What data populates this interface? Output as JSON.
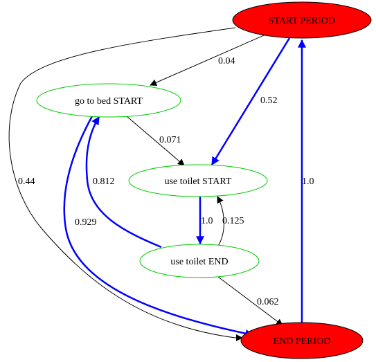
{
  "nodes": {
    "start_period": {
      "label": "START PERIOD",
      "fill": "#ff0000",
      "stroke": "#000000"
    },
    "end_period": {
      "label": "END PERIOD",
      "fill": "#ff0000",
      "stroke": "#000000"
    },
    "bed_start": {
      "label": "go to bed START",
      "fill": "#ffffff",
      "stroke": "#00cc00"
    },
    "toilet_start": {
      "label": "use toilet START",
      "fill": "#ffffff",
      "stroke": "#00cc00"
    },
    "toilet_end": {
      "label": "use toilet END",
      "fill": "#ffffff",
      "stroke": "#00cc00"
    }
  },
  "edges": {
    "start_to_bed": {
      "label": "0.04",
      "color": "#000000"
    },
    "start_to_toilet_start": {
      "label": "0.52",
      "color": "#0000ff"
    },
    "start_to_end": {
      "label": "0.44",
      "color": "#000000"
    },
    "bed_to_toilet_start": {
      "label": "0.071",
      "color": "#000000"
    },
    "bed_to_end": {
      "label": "0.929",
      "color": "#0000ff"
    },
    "toilet_start_to_toilet_end": {
      "label": "1.0",
      "color": "#0000ff"
    },
    "toilet_end_to_toilet_start": {
      "label": "0.125",
      "color": "#000000"
    },
    "toilet_end_to_bed": {
      "label": "0.812",
      "color": "#0000ff"
    },
    "toilet_end_to_end": {
      "label": "0.062",
      "color": "#000000"
    },
    "end_to_start": {
      "label": "1.0",
      "color": "#0000ff"
    }
  }
}
